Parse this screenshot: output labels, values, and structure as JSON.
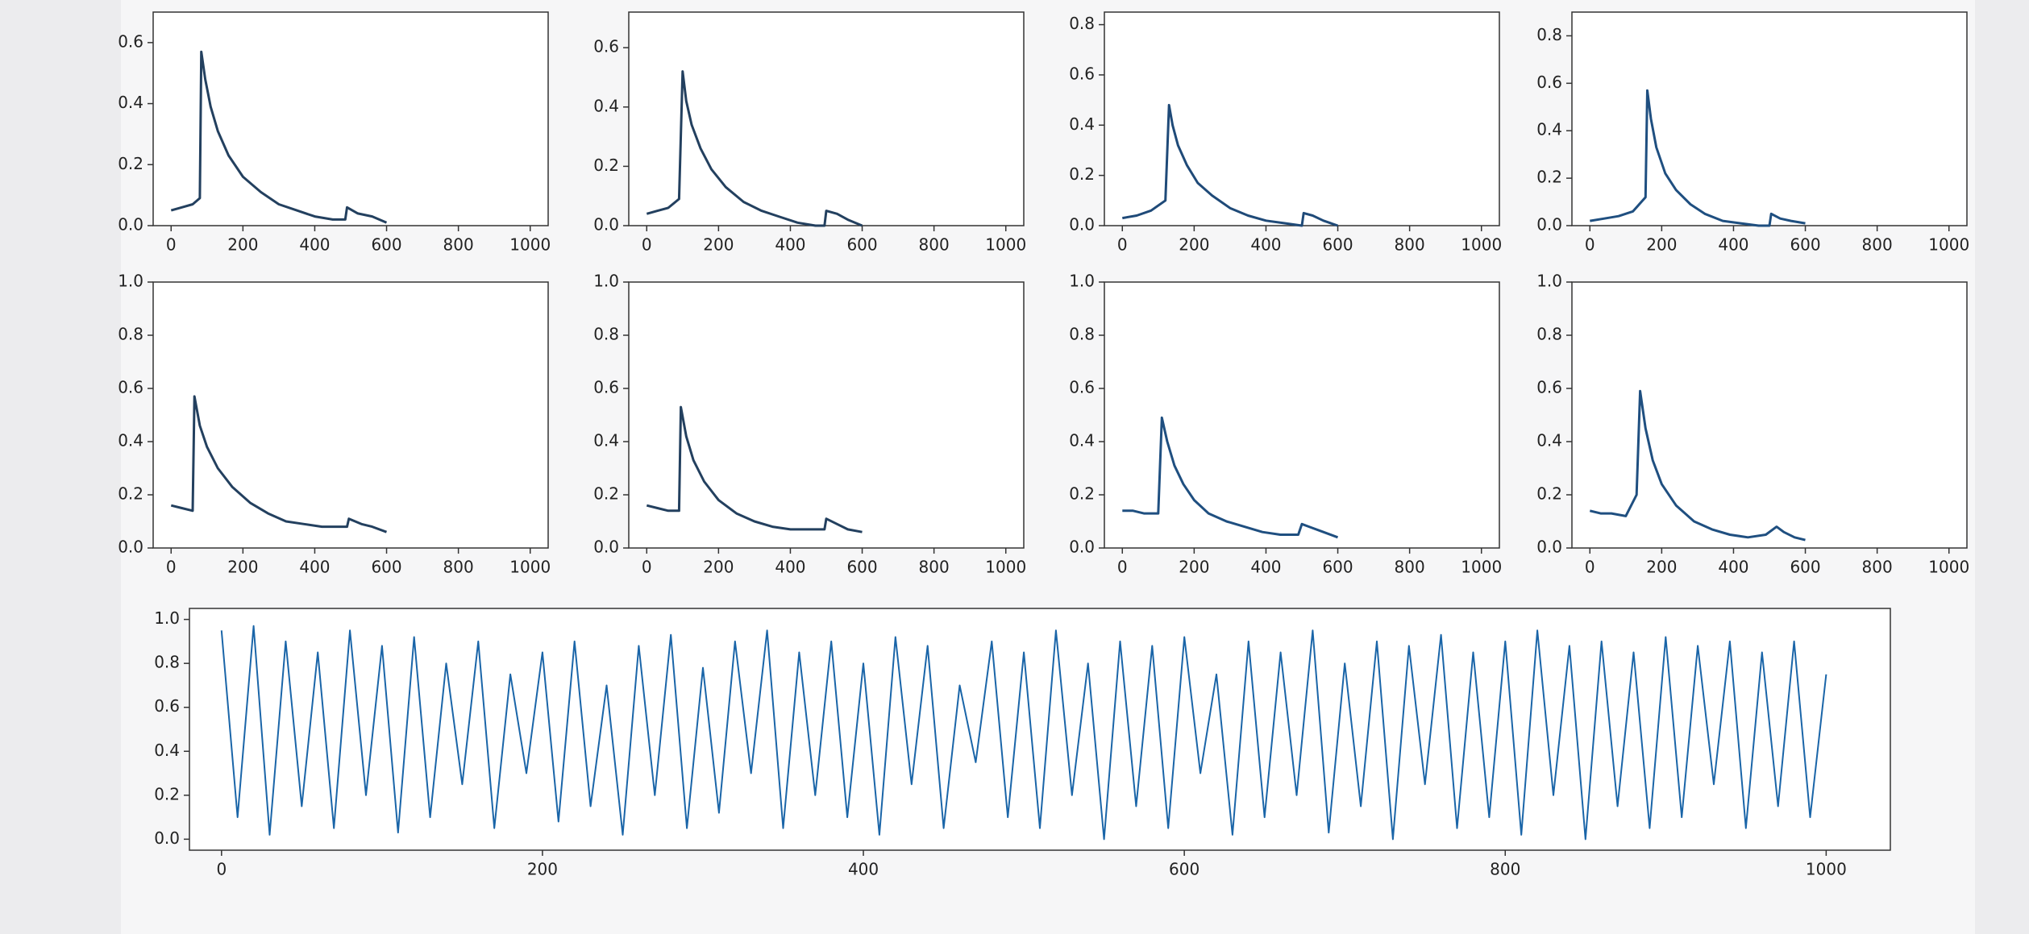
{
  "chart_data": [
    {
      "type": "line",
      "color": "#23405f",
      "xlim": [
        -50,
        1050
      ],
      "ylim": [
        0,
        0.7
      ],
      "xticks": [
        0,
        200,
        400,
        600,
        800,
        1000
      ],
      "yticks": [
        {
          "value": 0,
          "label": "0.0"
        },
        0.2,
        0.4,
        0.6
      ],
      "x": [
        0,
        30,
        60,
        80,
        84,
        95,
        110,
        130,
        160,
        200,
        250,
        300,
        350,
        400,
        450,
        485,
        490,
        520,
        560,
        600
      ],
      "values": [
        0.05,
        0.06,
        0.07,
        0.09,
        0.57,
        0.48,
        0.39,
        0.31,
        0.23,
        0.16,
        0.11,
        0.07,
        0.05,
        0.03,
        0.02,
        0.02,
        0.06,
        0.04,
        0.03,
        0.01
      ]
    },
    {
      "type": "line",
      "color": "#23405f",
      "xlim": [
        -50,
        1050
      ],
      "ylim": [
        0,
        0.72
      ],
      "xticks": [
        0,
        200,
        400,
        600,
        800,
        1000
      ],
      "yticks": [
        {
          "value": 0,
          "label": "0.0"
        },
        0.2,
        0.4,
        0.6
      ],
      "x": [
        0,
        30,
        60,
        90,
        100,
        110,
        125,
        150,
        180,
        220,
        270,
        320,
        370,
        420,
        470,
        495,
        500,
        530,
        560,
        600
      ],
      "values": [
        0.04,
        0.05,
        0.06,
        0.09,
        0.52,
        0.42,
        0.34,
        0.26,
        0.19,
        0.13,
        0.08,
        0.05,
        0.03,
        0.01,
        0.0,
        0.0,
        0.05,
        0.04,
        0.02,
        0.0
      ]
    },
    {
      "type": "line",
      "color": "#1f4a78",
      "xlim": [
        -50,
        1050
      ],
      "ylim": [
        0,
        0.85
      ],
      "xticks": [
        0,
        200,
        400,
        600,
        800,
        1000
      ],
      "yticks": [
        {
          "value": 0,
          "label": "0.0"
        },
        0.2,
        0.4,
        0.6,
        0.8
      ],
      "x": [
        0,
        40,
        80,
        120,
        130,
        140,
        155,
        180,
        210,
        250,
        300,
        350,
        400,
        450,
        500,
        505,
        530,
        560,
        600
      ],
      "values": [
        0.03,
        0.04,
        0.06,
        0.1,
        0.48,
        0.4,
        0.32,
        0.24,
        0.17,
        0.12,
        0.07,
        0.04,
        0.02,
        0.01,
        0.0,
        0.05,
        0.04,
        0.02,
        0.0
      ]
    },
    {
      "type": "line",
      "color": "#1f4f80",
      "xlim": [
        -50,
        1050
      ],
      "ylim": [
        0,
        0.9
      ],
      "xticks": [
        0,
        200,
        400,
        600,
        800,
        1000
      ],
      "yticks": [
        {
          "value": 0,
          "label": "0.0"
        },
        0.2,
        0.4,
        0.6,
        0.8
      ],
      "x": [
        0,
        40,
        80,
        120,
        155,
        160,
        170,
        185,
        210,
        240,
        280,
        320,
        370,
        420,
        470,
        500,
        505,
        530,
        560,
        600
      ],
      "values": [
        0.02,
        0.03,
        0.04,
        0.06,
        0.12,
        0.57,
        0.45,
        0.33,
        0.22,
        0.15,
        0.09,
        0.05,
        0.02,
        0.01,
        0.0,
        0.0,
        0.05,
        0.03,
        0.02,
        0.01
      ]
    },
    {
      "type": "line",
      "color": "#23405f",
      "xlim": [
        -50,
        1050
      ],
      "ylim": [
        0,
        1
      ],
      "xticks": [
        0,
        200,
        400,
        600,
        800,
        1000
      ],
      "yticks": [
        {
          "value": 0,
          "label": "0.0"
        },
        0.2,
        0.4,
        0.6,
        0.8,
        {
          "value": 1,
          "label": "1.0"
        }
      ],
      "x": [
        0,
        30,
        60,
        65,
        80,
        100,
        130,
        170,
        220,
        270,
        320,
        370,
        420,
        470,
        490,
        495,
        530,
        560,
        600
      ],
      "values": [
        0.16,
        0.15,
        0.14,
        0.57,
        0.46,
        0.38,
        0.3,
        0.23,
        0.17,
        0.13,
        0.1,
        0.09,
        0.08,
        0.08,
        0.08,
        0.11,
        0.09,
        0.08,
        0.06
      ]
    },
    {
      "type": "line",
      "color": "#23405f",
      "xlim": [
        -50,
        1050
      ],
      "ylim": [
        0,
        1
      ],
      "xticks": [
        0,
        200,
        400,
        600,
        800,
        1000
      ],
      "yticks": [
        {
          "value": 0,
          "label": "0.0"
        },
        0.2,
        0.4,
        0.6,
        0.8,
        {
          "value": 1,
          "label": "1.0"
        }
      ],
      "x": [
        0,
        30,
        60,
        90,
        95,
        110,
        130,
        160,
        200,
        250,
        300,
        350,
        400,
        450,
        495,
        500,
        530,
        560,
        600
      ],
      "values": [
        0.16,
        0.15,
        0.14,
        0.14,
        0.53,
        0.42,
        0.33,
        0.25,
        0.18,
        0.13,
        0.1,
        0.08,
        0.07,
        0.07,
        0.07,
        0.11,
        0.09,
        0.07,
        0.06
      ]
    },
    {
      "type": "line",
      "color": "#1f4f80",
      "xlim": [
        -50,
        1050
      ],
      "ylim": [
        0,
        1
      ],
      "xticks": [
        0,
        200,
        400,
        600,
        800,
        1000
      ],
      "yticks": [
        {
          "value": 0,
          "label": "0.0"
        },
        0.2,
        0.4,
        0.6,
        0.8,
        {
          "value": 1,
          "label": "1.0"
        }
      ],
      "x": [
        0,
        30,
        60,
        100,
        110,
        125,
        145,
        170,
        200,
        240,
        290,
        340,
        390,
        440,
        490,
        500,
        520,
        560,
        600
      ],
      "values": [
        0.14,
        0.14,
        0.13,
        0.13,
        0.49,
        0.4,
        0.31,
        0.24,
        0.18,
        0.13,
        0.1,
        0.08,
        0.06,
        0.05,
        0.05,
        0.09,
        0.08,
        0.06,
        0.04
      ]
    },
    {
      "type": "line",
      "color": "#1f4f80",
      "xlim": [
        -50,
        1050
      ],
      "ylim": [
        0,
        1
      ],
      "xticks": [
        0,
        200,
        400,
        600,
        800,
        1000
      ],
      "yticks": [
        {
          "value": 0,
          "label": "0.0"
        },
        0.2,
        0.4,
        0.6,
        0.8,
        {
          "value": 1,
          "label": "1.0"
        }
      ],
      "x": [
        0,
        30,
        60,
        100,
        130,
        140,
        155,
        175,
        200,
        240,
        290,
        340,
        390,
        440,
        490,
        520,
        540,
        570,
        600
      ],
      "values": [
        0.14,
        0.13,
        0.13,
        0.12,
        0.2,
        0.59,
        0.45,
        0.33,
        0.24,
        0.16,
        0.1,
        0.07,
        0.05,
        0.04,
        0.05,
        0.08,
        0.06,
        0.04,
        0.03
      ]
    },
    {
      "type": "line",
      "color": "#1a65a8",
      "xlim": [
        -20,
        1040
      ],
      "ylim": [
        -0.05,
        1.05
      ],
      "xticks": [
        0,
        200,
        400,
        600,
        800,
        1000
      ],
      "yticks": [
        {
          "value": 0,
          "label": "0.0"
        },
        0.2,
        0.4,
        0.6,
        0.8,
        {
          "value": 1,
          "label": "1.0"
        }
      ],
      "x": [
        0,
        10,
        20,
        30,
        40,
        50,
        60,
        70,
        80,
        90,
        100,
        110,
        120,
        130,
        140,
        150,
        160,
        170,
        180,
        190,
        200,
        210,
        220,
        230,
        240,
        250,
        260,
        270,
        280,
        290,
        300,
        310,
        320,
        330,
        340,
        350,
        360,
        370,
        380,
        390,
        400,
        410,
        420,
        430,
        440,
        450,
        460,
        470,
        480,
        490,
        500,
        510,
        520,
        530,
        540,
        550,
        560,
        570,
        580,
        590,
        600,
        610,
        620,
        630,
        640,
        650,
        660,
        670,
        680,
        690,
        700,
        710,
        720,
        730,
        740,
        750,
        760,
        770,
        780,
        790,
        800,
        810,
        820,
        830,
        840,
        850,
        860,
        870,
        880,
        890,
        900,
        910,
        920,
        930,
        940,
        950,
        960,
        970,
        980,
        990,
        1000
      ],
      "values": [
        0.95,
        0.1,
        0.97,
        0.02,
        0.9,
        0.15,
        0.85,
        0.05,
        0.95,
        0.2,
        0.88,
        0.03,
        0.92,
        0.1,
        0.8,
        0.25,
        0.9,
        0.05,
        0.75,
        0.3,
        0.85,
        0.08,
        0.9,
        0.15,
        0.7,
        0.02,
        0.88,
        0.2,
        0.93,
        0.05,
        0.78,
        0.12,
        0.9,
        0.3,
        0.95,
        0.05,
        0.85,
        0.2,
        0.9,
        0.1,
        0.8,
        0.02,
        0.92,
        0.25,
        0.88,
        0.05,
        0.7,
        0.35,
        0.9,
        0.1,
        0.85,
        0.05,
        0.95,
        0.2,
        0.8,
        0.0,
        0.9,
        0.15,
        0.88,
        0.05,
        0.92,
        0.3,
        0.75,
        0.02,
        0.9,
        0.1,
        0.85,
        0.2,
        0.95,
        0.03,
        0.8,
        0.15,
        0.9,
        0.0,
        0.88,
        0.25,
        0.93,
        0.05,
        0.85,
        0.1,
        0.9,
        0.02,
        0.95,
        0.2,
        0.88,
        0.0,
        0.9,
        0.15,
        0.85,
        0.05,
        0.92,
        0.1,
        0.88,
        0.25,
        0.9,
        0.05,
        0.85,
        0.15,
        0.9,
        0.1,
        0.75
      ]
    }
  ]
}
